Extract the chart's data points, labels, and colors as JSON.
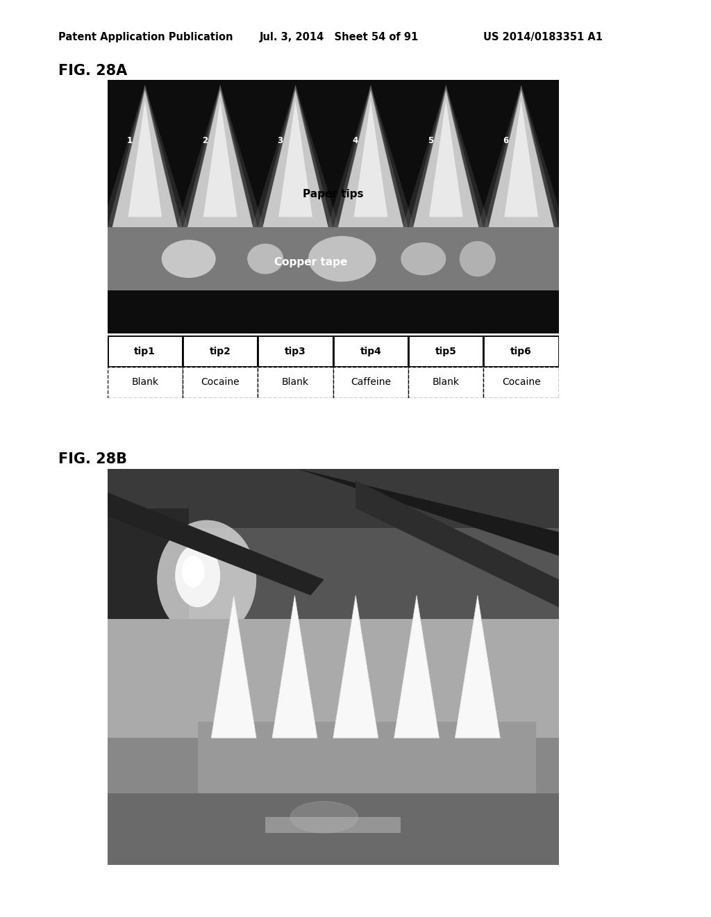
{
  "header_left": "Patent Application Publication",
  "header_mid": "Jul. 3, 2014   Sheet 54 of 91",
  "header_right": "US 2014/0183351 A1",
  "fig_28a_label": "FIG. 28A",
  "fig_28b_label": "FIG. 28B",
  "paper_tips_label": "Paper tips",
  "copper_tape_label": "Copper tape",
  "tip_labels": [
    "tip1",
    "tip2",
    "tip3",
    "tip4",
    "tip5",
    "tip6"
  ],
  "sample_labels": [
    "Blank",
    "Cocaine",
    "Blank",
    "Caffeine",
    "Blank",
    "Cocaine"
  ],
  "tip_numbers": [
    "1",
    "2",
    "3",
    "4",
    "5",
    "6"
  ],
  "bg_color": "#ffffff",
  "header_fontsize": 10.5,
  "fig_label_fontsize": 15
}
